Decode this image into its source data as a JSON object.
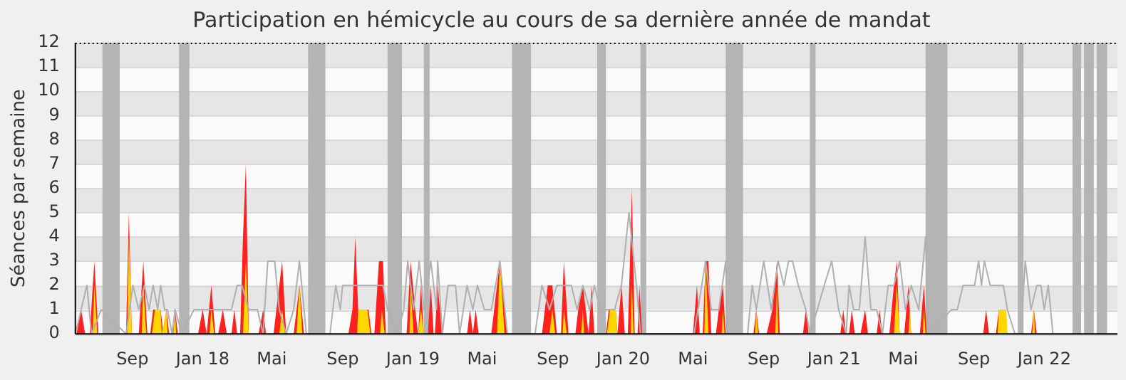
{
  "chart_data": {
    "type": "area",
    "title": "Participation en hémicycle au cours de sa dernière année de mandat",
    "ylabel": "Séances par semaine",
    "xlim": [
      "2017-05-25",
      "2022-05-08"
    ],
    "xticks": [
      {
        "value": "2017-09-01",
        "label": "Sep"
      },
      {
        "value": "2018-01-01",
        "label": "Jan 18"
      },
      {
        "value": "2018-05-01",
        "label": "Mai"
      },
      {
        "value": "2018-09-01",
        "label": "Sep"
      },
      {
        "value": "2019-01-01",
        "label": "Jan 19"
      },
      {
        "value": "2019-05-01",
        "label": "Mai"
      },
      {
        "value": "2019-09-01",
        "label": "Sep"
      },
      {
        "value": "2020-01-01",
        "label": "Jan 20"
      },
      {
        "value": "2020-05-01",
        "label": "Mai"
      },
      {
        "value": "2020-09-01",
        "label": "Sep"
      },
      {
        "value": "2021-01-01",
        "label": "Jan 21"
      },
      {
        "value": "2021-05-01",
        "label": "Mai"
      },
      {
        "value": "2021-09-01",
        "label": "Sep"
      },
      {
        "value": "2022-01-01",
        "label": "Jan 22"
      }
    ],
    "ylim": [
      0,
      12
    ],
    "yticks": [
      0,
      1,
      2,
      3,
      4,
      5,
      6,
      7,
      8,
      9,
      10,
      11,
      12
    ],
    "grid": "y",
    "bands": [
      {
        "axis": "x",
        "from": "2017-07-11",
        "to": "2017-08-10",
        "color": "#b4b4b4"
      },
      {
        "axis": "x",
        "from": "2017-11-21",
        "to": "2017-12-09",
        "color": "#b4b4b4"
      },
      {
        "axis": "x",
        "from": "2018-07-03",
        "to": "2018-08-02",
        "color": "#b4b4b4"
      },
      {
        "axis": "x",
        "from": "2018-11-18",
        "to": "2018-12-13",
        "color": "#b4b4b4"
      },
      {
        "axis": "x",
        "from": "2019-01-20",
        "to": "2019-01-30",
        "color": "#b4b4b4"
      },
      {
        "axis": "x",
        "from": "2019-06-22",
        "to": "2019-07-25",
        "color": "#b4b4b4"
      },
      {
        "axis": "x",
        "from": "2019-11-17",
        "to": "2019-12-02",
        "color": "#b4b4b4"
      },
      {
        "axis": "x",
        "from": "2020-01-31",
        "to": "2020-02-10",
        "color": "#b4b4b4"
      },
      {
        "axis": "x",
        "from": "2020-06-27",
        "to": "2020-07-27",
        "color": "#b4b4b4"
      },
      {
        "axis": "x",
        "from": "2020-11-20",
        "to": "2020-11-30",
        "color": "#b4b4b4"
      },
      {
        "axis": "x",
        "from": "2021-06-09",
        "to": "2021-07-17",
        "color": "#b4b4b4"
      },
      {
        "axis": "x",
        "from": "2021-11-16",
        "to": "2021-11-26",
        "color": "#b4b4b4"
      },
      {
        "axis": "x",
        "from": "2022-02-19",
        "to": "2022-03-06",
        "color": "#b4b4b4"
      },
      {
        "axis": "x",
        "from": "2022-03-11",
        "to": "2022-03-28",
        "color": "#b4b4b4"
      },
      {
        "axis": "x",
        "from": "2022-04-02",
        "to": "2022-04-20",
        "color": "#b4b4b4"
      }
    ],
    "series": [
      {
        "type": "line",
        "color": "#b0b0b0",
        "x": [
          "2017-05-25",
          "2017-06-14",
          "2017-06-22",
          "2017-07-09",
          "2017-08-21",
          "2017-09-02",
          "2017-09-12",
          "2017-09-22",
          "2017-09-30",
          "2017-10-07",
          "2017-10-15",
          "2017-10-20",
          "2017-10-27",
          "2017-11-01",
          "2017-11-09",
          "2017-11-14",
          "2017-11-26",
          "2017-12-17",
          "2018-01-06",
          "2018-01-26",
          "2018-02-20",
          "2018-03-02",
          "2018-03-10",
          "2018-03-22",
          "2018-04-06",
          "2018-04-16",
          "2018-04-24",
          "2018-05-06",
          "2018-05-14",
          "2018-05-26",
          "2018-06-08",
          "2018-06-18",
          "2018-06-26",
          "2018-06-30",
          "2018-08-10",
          "2018-08-20",
          "2018-08-28",
          "2018-09-01",
          "2018-09-13",
          "2018-09-28",
          "2018-10-29",
          "2018-11-10",
          "2018-11-18",
          "2018-12-05",
          "2018-12-16",
          "2018-12-23",
          "2019-01-02",
          "2019-01-12",
          "2019-01-20",
          "2019-02-01",
          "2019-02-11",
          "2019-02-13",
          "2019-02-21",
          "2019-03-03",
          "2019-03-16",
          "2019-03-23",
          "2019-04-05",
          "2019-04-15",
          "2019-04-23",
          "2019-05-05",
          "2019-05-17",
          "2019-06-01",
          "2019-06-14",
          "2019-08-01",
          "2019-08-13",
          "2019-08-26",
          "2019-09-08",
          "2019-09-25",
          "2019-10-03",
          "2019-10-13",
          "2019-10-23",
          "2019-11-04",
          "2019-11-12",
          "2019-11-22",
          "2019-12-04",
          "2019-12-17",
          "2019-12-29",
          "2020-01-11",
          "2020-01-24",
          "2020-01-31",
          "2020-05-03",
          "2020-05-23",
          "2020-06-02",
          "2020-06-15",
          "2020-06-27",
          "2020-06-30",
          "2020-08-04",
          "2020-08-12",
          "2020-08-19",
          "2020-09-01",
          "2020-09-14",
          "2020-09-26",
          "2020-10-06",
          "2020-10-14",
          "2020-10-21",
          "2020-10-31",
          "2020-11-13",
          "2020-11-20",
          "2020-12-03",
          "2020-12-15",
          "2020-12-28",
          "2021-01-09",
          "2021-01-22",
          "2021-01-27",
          "2021-02-04",
          "2021-02-14",
          "2021-02-24",
          "2021-03-06",
          "2021-03-16",
          "2021-03-26",
          "2021-04-05",
          "2021-04-15",
          "2021-04-25",
          "2021-05-05",
          "2021-05-15",
          "2021-05-28",
          "2021-06-09",
          "2021-06-14",
          "2021-07-24",
          "2021-08-03",
          "2021-08-13",
          "2021-08-23",
          "2021-09-02",
          "2021-09-09",
          "2021-09-14",
          "2021-09-19",
          "2021-09-29",
          "2021-10-12",
          "2021-10-22",
          "2021-10-29",
          "2021-11-11",
          "2021-11-21",
          "2021-11-29",
          "2021-12-09",
          "2021-12-19",
          "2021-12-26",
          "2022-01-01",
          "2022-01-08",
          "2022-01-16"
        ],
        "values": [
          0,
          2,
          0,
          1,
          0,
          2,
          1,
          2,
          1,
          2,
          1,
          2,
          1,
          1,
          0,
          1,
          0,
          1,
          1,
          1,
          1,
          2,
          2,
          1,
          1,
          0,
          3,
          3,
          1,
          0,
          1,
          3,
          1,
          0,
          0,
          2,
          1,
          2,
          2,
          2,
          2,
          2,
          1,
          0,
          1,
          3,
          1,
          3,
          1,
          3,
          1,
          3,
          0,
          2,
          2,
          0,
          2,
          1,
          2,
          1,
          1,
          3,
          0,
          0,
          2,
          1,
          2,
          2,
          2,
          1,
          2,
          1,
          2,
          1,
          1,
          1,
          2,
          5,
          2,
          0,
          0,
          3,
          1,
          1,
          3,
          0,
          0,
          2,
          1,
          3,
          1,
          3,
          2,
          3,
          3,
          2,
          1,
          0,
          1,
          2,
          3,
          1,
          0,
          2,
          1,
          1,
          4,
          1,
          1,
          0,
          2,
          2,
          3,
          1,
          2,
          1,
          4,
          0,
          1,
          1,
          2,
          2,
          2,
          3,
          2,
          3,
          2,
          2,
          2,
          1,
          0,
          0,
          3,
          1,
          2,
          2,
          1,
          2,
          0
        ]
      },
      {
        "type": "area",
        "color": "#ff2020",
        "x": [
          "2017-05-27",
          "2017-06-04",
          "2017-06-11",
          "2017-06-19",
          "2017-06-27",
          "2017-07-04",
          "2017-08-21",
          "2017-08-26",
          "2017-08-31",
          "2017-09-12",
          "2017-09-20",
          "2017-09-27",
          "2017-10-02",
          "2017-10-07",
          "2017-10-20",
          "2017-10-25",
          "2017-10-30",
          "2017-11-04",
          "2017-11-09",
          "2017-11-14",
          "2017-11-19",
          "2017-12-24",
          "2018-01-01",
          "2018-01-08",
          "2018-01-16",
          "2018-01-23",
          "2018-01-28",
          "2018-02-05",
          "2018-02-12",
          "2018-02-20",
          "2018-02-25",
          "2018-03-02",
          "2018-03-07",
          "2018-03-12",
          "2018-03-17",
          "2018-03-22",
          "2018-04-08",
          "2018-04-16",
          "2018-04-21",
          "2018-05-04",
          "2018-05-19",
          "2018-05-26",
          "2018-06-08",
          "2018-06-18",
          "2018-06-26",
          "2018-09-11",
          "2018-09-18",
          "2018-09-23",
          "2018-09-28",
          "2018-10-16",
          "2018-10-21",
          "2018-10-26",
          "2018-11-03",
          "2018-11-10",
          "2018-11-15",
          "2018-12-21",
          "2018-12-28",
          "2019-01-05",
          "2019-01-10",
          "2019-01-15",
          "2019-01-20",
          "2019-01-27",
          "2019-02-01",
          "2019-02-06",
          "2019-02-08",
          "2019-02-13",
          "2019-02-21",
          "2019-04-05",
          "2019-04-10",
          "2019-04-15",
          "2019-04-20",
          "2019-04-25",
          "2019-05-17",
          "2019-06-01",
          "2019-06-14",
          "2019-08-13",
          "2019-08-23",
          "2019-08-31",
          "2019-09-08",
          "2019-09-15",
          "2019-09-20",
          "2019-09-28",
          "2019-10-10",
          "2019-10-15",
          "2019-10-23",
          "2019-10-28",
          "2019-11-02",
          "2019-11-07",
          "2019-11-12",
          "2019-12-02",
          "2019-12-07",
          "2019-12-19",
          "2019-12-22",
          "2019-12-24",
          "2019-12-29",
          "2020-01-04",
          "2020-01-09",
          "2020-01-14",
          "2020-01-16",
          "2020-01-21",
          "2020-01-26",
          "2020-01-29",
          "2020-02-03",
          "2020-05-01",
          "2020-05-08",
          "2020-05-13",
          "2020-05-18",
          "2020-05-23",
          "2020-05-28",
          "2020-06-02",
          "2020-06-10",
          "2020-06-15",
          "2020-06-22",
          "2020-06-27",
          "2020-08-14",
          "2020-08-19",
          "2020-08-24",
          "2020-09-06",
          "2020-09-16",
          "2020-09-24",
          "2020-09-29",
          "2020-11-08",
          "2020-11-13",
          "2020-11-18",
          "2021-01-12",
          "2021-01-17",
          "2021-01-22",
          "2021-01-27",
          "2021-02-01",
          "2021-02-06",
          "2021-02-16",
          "2021-02-24",
          "2021-03-01",
          "2021-03-16",
          "2021-03-21",
          "2021-03-26",
          "2021-04-07",
          "2021-04-15",
          "2021-04-20",
          "2021-04-25",
          "2021-05-03",
          "2021-05-10",
          "2021-05-15",
          "2021-05-30",
          "2021-06-06",
          "2021-06-11",
          "2021-09-17",
          "2021-09-22",
          "2021-09-27",
          "2021-10-09",
          "2021-10-14",
          "2021-10-24",
          "2021-10-29",
          "2021-12-09",
          "2021-12-14",
          "2021-12-19",
          "2022-01-16"
        ],
        "values": [
          0,
          1,
          0,
          0,
          3,
          0,
          0,
          5,
          0,
          0,
          3,
          0,
          0,
          1,
          1,
          0,
          1,
          0,
          0,
          1,
          0,
          0,
          1,
          0,
          2,
          0,
          0,
          1,
          0,
          0,
          1,
          0,
          0,
          4,
          7,
          0,
          0,
          1,
          0,
          0,
          3,
          0,
          0,
          2,
          0,
          0,
          1,
          4,
          1,
          1,
          0,
          0,
          3,
          3,
          0,
          0,
          3,
          1,
          0,
          2,
          0,
          0,
          2,
          0,
          0,
          2,
          0,
          0,
          1,
          0,
          1,
          0,
          0,
          3,
          0,
          0,
          2,
          2,
          0,
          0,
          3,
          0,
          0,
          1,
          2,
          1,
          0,
          2,
          0,
          0,
          1,
          1,
          0,
          0,
          2,
          0,
          0,
          4,
          6,
          0,
          0,
          2,
          0,
          0,
          2,
          0,
          0,
          3,
          3,
          0,
          0,
          1,
          2,
          0,
          0,
          1,
          0,
          0,
          1,
          3,
          0,
          0,
          1,
          0,
          0,
          1,
          0,
          0,
          1,
          0,
          0,
          1,
          0,
          0,
          1,
          0,
          0,
          2,
          3,
          0,
          0,
          2,
          0,
          0,
          2,
          0,
          0,
          1,
          0,
          0,
          1,
          1,
          0,
          0,
          1,
          0,
          0
        ]
      },
      {
        "type": "area",
        "color": "#ffd700",
        "x": [
          "2017-06-24",
          "2017-06-27",
          "2017-07-02",
          "2017-08-23",
          "2017-08-26",
          "2017-08-31",
          "2017-09-17",
          "2017-09-20",
          "2017-09-25",
          "2017-10-05",
          "2017-10-10",
          "2017-10-20",
          "2017-10-22",
          "2017-10-30",
          "2017-11-01",
          "2017-11-11",
          "2017-11-14",
          "2017-11-16",
          "2018-01-13",
          "2018-01-16",
          "2018-01-21",
          "2018-03-12",
          "2018-03-17",
          "2018-03-22",
          "2018-05-14",
          "2018-05-19",
          "2018-05-24",
          "2018-06-13",
          "2018-06-18",
          "2018-06-23",
          "2018-09-26",
          "2018-09-28",
          "2018-10-14",
          "2018-10-19",
          "2018-11-05",
          "2018-11-08",
          "2018-11-13",
          "2018-12-26",
          "2018-12-28",
          "2019-01-02",
          "2019-01-10",
          "2019-01-15",
          "2019-01-20",
          "2019-05-27",
          "2019-06-01",
          "2019-06-09",
          "2019-08-26",
          "2019-08-31",
          "2019-09-05",
          "2019-09-18",
          "2019-09-20",
          "2019-09-25",
          "2019-10-20",
          "2019-10-23",
          "2019-10-25",
          "2019-12-04",
          "2019-12-09",
          "2019-12-19",
          "2019-12-22",
          "2020-01-14",
          "2020-01-16",
          "2020-01-19",
          "2020-05-21",
          "2020-05-23",
          "2020-05-28",
          "2020-06-20",
          "2020-06-22",
          "2020-06-25",
          "2020-08-17",
          "2020-08-19",
          "2020-08-22",
          "2020-09-21",
          "2020-09-24",
          "2020-09-26",
          "2021-04-15",
          "2021-04-20",
          "2021-04-25",
          "2021-05-10",
          "2021-05-13",
          "2021-05-15",
          "2021-06-04",
          "2021-06-06",
          "2021-06-09",
          "2021-10-12",
          "2021-10-14",
          "2021-10-27",
          "2021-10-29",
          "2021-12-11",
          "2021-12-14",
          "2021-12-16"
        ],
        "values": [
          0,
          2,
          0,
          0,
          4,
          0,
          0,
          2,
          0,
          0,
          1,
          1,
          0,
          1,
          0,
          0,
          1,
          0,
          0,
          1,
          0,
          0,
          3,
          0,
          0,
          1,
          0,
          0,
          2,
          0,
          0,
          1,
          1,
          0,
          0,
          1,
          0,
          0,
          2,
          0,
          0,
          1,
          0,
          0,
          3,
          0,
          0,
          1,
          0,
          0,
          1,
          0,
          0,
          1,
          0,
          0,
          1,
          1,
          0,
          0,
          2,
          0,
          0,
          3,
          0,
          0,
          1,
          0,
          0,
          1,
          0,
          0,
          2,
          0,
          0,
          2,
          0,
          0,
          1,
          0,
          0,
          1,
          0,
          0,
          1,
          1,
          0,
          0,
          1,
          0
        ]
      }
    ]
  }
}
